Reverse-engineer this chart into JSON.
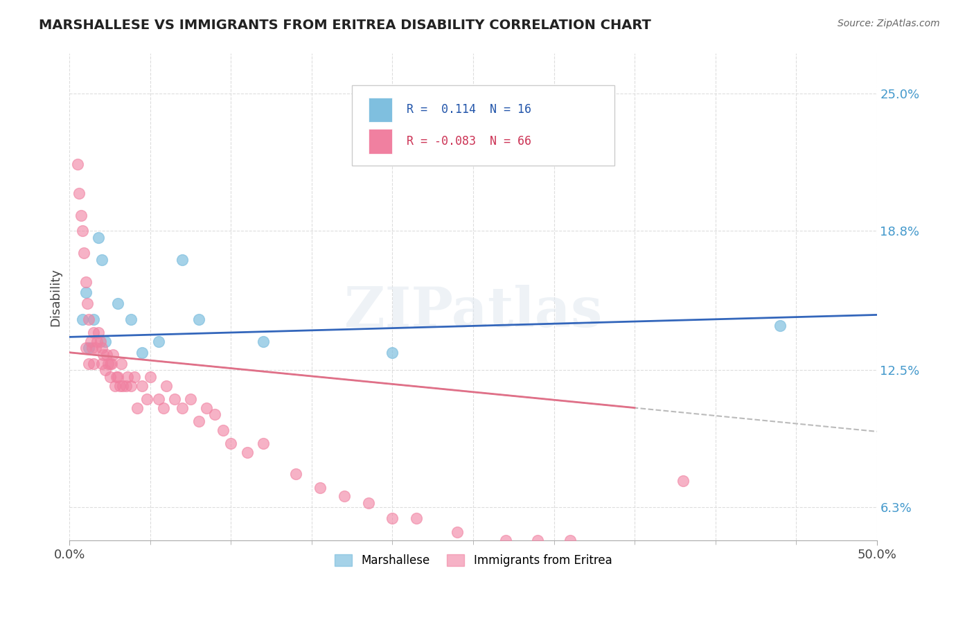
{
  "title": "MARSHALLESE VS IMMIGRANTS FROM ERITREA DISABILITY CORRELATION CHART",
  "source": "Source: ZipAtlas.com",
  "ylabel": "Disability",
  "xlim": [
    0.0,
    0.5
  ],
  "ylim": [
    0.048,
    0.268
  ],
  "ytick_labels": [
    "6.3%",
    "12.5%",
    "18.8%",
    "25.0%"
  ],
  "ytick_values": [
    0.063,
    0.125,
    0.188,
    0.25
  ],
  "r_blue": 0.114,
  "n_blue": 16,
  "r_pink": -0.083,
  "n_pink": 66,
  "blue_color": "#7fbfdf",
  "pink_color": "#f080a0",
  "trendline_blue_color": "#3366bb",
  "trendline_pink_color": "#e07088",
  "trendline_dash_color": "#bbbbbb",
  "watermark": "ZIPatlas",
  "legend_label_blue": "Marshallese",
  "legend_label_pink": "Immigrants from Eritrea",
  "blue_points_x": [
    0.008,
    0.01,
    0.012,
    0.015,
    0.018,
    0.02,
    0.022,
    0.03,
    0.038,
    0.045,
    0.055,
    0.07,
    0.08,
    0.12,
    0.2,
    0.44
  ],
  "blue_points_y": [
    0.148,
    0.16,
    0.135,
    0.148,
    0.185,
    0.175,
    0.138,
    0.155,
    0.148,
    0.133,
    0.138,
    0.175,
    0.148,
    0.138,
    0.133,
    0.145
  ],
  "pink_points_x": [
    0.005,
    0.006,
    0.007,
    0.008,
    0.009,
    0.01,
    0.01,
    0.011,
    0.012,
    0.012,
    0.013,
    0.014,
    0.015,
    0.015,
    0.016,
    0.017,
    0.018,
    0.019,
    0.02,
    0.02,
    0.021,
    0.022,
    0.023,
    0.024,
    0.025,
    0.025,
    0.026,
    0.027,
    0.028,
    0.029,
    0.03,
    0.031,
    0.032,
    0.033,
    0.035,
    0.036,
    0.038,
    0.04,
    0.042,
    0.045,
    0.048,
    0.05,
    0.055,
    0.058,
    0.06,
    0.065,
    0.07,
    0.075,
    0.08,
    0.085,
    0.09,
    0.095,
    0.1,
    0.11,
    0.12,
    0.14,
    0.155,
    0.17,
    0.185,
    0.2,
    0.215,
    0.24,
    0.27,
    0.29,
    0.31,
    0.38
  ],
  "pink_points_y": [
    0.218,
    0.205,
    0.195,
    0.188,
    0.178,
    0.165,
    0.135,
    0.155,
    0.148,
    0.128,
    0.138,
    0.135,
    0.142,
    0.128,
    0.135,
    0.138,
    0.142,
    0.138,
    0.135,
    0.128,
    0.132,
    0.125,
    0.132,
    0.128,
    0.128,
    0.122,
    0.128,
    0.132,
    0.118,
    0.122,
    0.122,
    0.118,
    0.128,
    0.118,
    0.118,
    0.122,
    0.118,
    0.122,
    0.108,
    0.118,
    0.112,
    0.122,
    0.112,
    0.108,
    0.118,
    0.112,
    0.108,
    0.112,
    0.102,
    0.108,
    0.105,
    0.098,
    0.092,
    0.088,
    0.092,
    0.078,
    0.072,
    0.068,
    0.065,
    0.058,
    0.058,
    0.052,
    0.048,
    0.048,
    0.048,
    0.075
  ],
  "trendline_blue_start_y": 0.14,
  "trendline_blue_end_y": 0.15,
  "trendline_pink_start_y": 0.133,
  "trendline_pink_end_y": 0.108,
  "trendline_pink_end_x": 0.35,
  "background_color": "#ffffff",
  "grid_color": "#dddddd"
}
